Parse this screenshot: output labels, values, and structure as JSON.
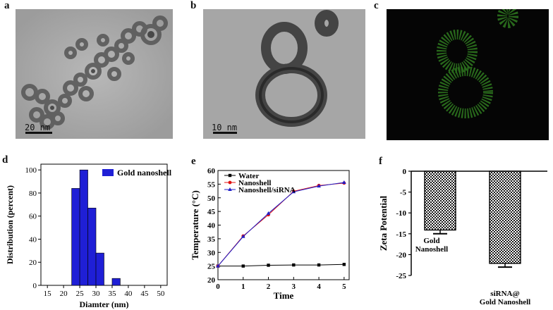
{
  "panels": {
    "a": {
      "letter": "a",
      "scale_label": "20 nm"
    },
    "b": {
      "letter": "b",
      "scale_label": "10 nm"
    },
    "c": {
      "letter": "c"
    },
    "d": {
      "letter": "d"
    },
    "e": {
      "letter": "e"
    },
    "f": {
      "letter": "f"
    }
  },
  "colors": {
    "bar_blue": "#1f1fd6",
    "water": "#000000",
    "nanoshell": "#e01010",
    "nanoshell_sirna": "#2020c8",
    "map_green": "#2f7a20"
  },
  "chart_data": [
    {
      "id": "d",
      "type": "bar",
      "xlabel": "Diamter (nm)",
      "ylabel": "Distribution (percent)",
      "legend": [
        "Gold nanoshell"
      ],
      "legend_position": "top-right",
      "xlim": [
        13,
        52
      ],
      "ylim": [
        0,
        105
      ],
      "xticks": [
        15,
        20,
        25,
        30,
        35,
        40,
        45,
        50
      ],
      "yticks": [
        0,
        20,
        40,
        60,
        80,
        100
      ],
      "bins": [
        {
          "x0": 22.5,
          "x1": 25,
          "value": 84
        },
        {
          "x0": 25,
          "x1": 27.5,
          "value": 100
        },
        {
          "x0": 27.5,
          "x1": 30,
          "value": 67
        },
        {
          "x0": 30,
          "x1": 32.5,
          "value": 28
        },
        {
          "x0": 35,
          "x1": 37.5,
          "value": 6
        }
      ]
    },
    {
      "id": "e",
      "type": "line",
      "xlabel": "Time",
      "ylabel": "Temperature (°C)",
      "xlim": [
        0,
        5.2
      ],
      "ylim": [
        20,
        60
      ],
      "xticks": [
        0,
        1,
        2,
        3,
        4,
        5
      ],
      "yticks": [
        20,
        25,
        30,
        35,
        40,
        45,
        50,
        55,
        60
      ],
      "legend_position": "top-left",
      "x": [
        0,
        1,
        2,
        3,
        4,
        5
      ],
      "series": [
        {
          "name": "Water",
          "values": [
            25,
            25,
            25.3,
            25.4,
            25.4,
            25.6
          ]
        },
        {
          "name": "Nanoshell",
          "values": [
            25,
            36,
            43.8,
            52.4,
            54.5,
            55.4
          ]
        },
        {
          "name": "Nanoshell/siRNA",
          "values": [
            25,
            35.8,
            44.3,
            52.2,
            54.3,
            55.6
          ]
        }
      ]
    },
    {
      "id": "f",
      "type": "bar",
      "xlabel": "",
      "ylabel": "Zeta Potential",
      "ylim": [
        -25,
        0
      ],
      "yticks": [
        0,
        -5,
        -10,
        -15,
        -20,
        -25
      ],
      "categories": [
        "Gold\nNanoshell",
        "siRNA@\nGold Nanoshell"
      ],
      "values": [
        -14.1,
        -22.1
      ],
      "errors": [
        0.9,
        0.9
      ]
    }
  ]
}
